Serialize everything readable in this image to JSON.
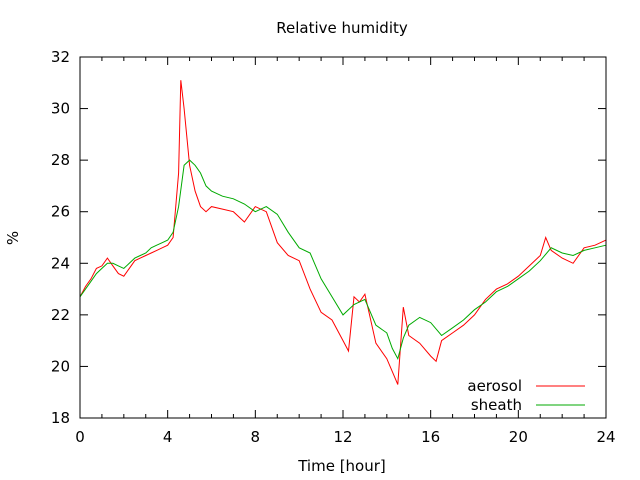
{
  "chart_data": {
    "type": "line",
    "title": "Relative humidity",
    "xlabel": "Time [hour]",
    "ylabel": "%",
    "xlim": [
      0,
      24
    ],
    "ylim": [
      18,
      32
    ],
    "xticks": [
      0,
      4,
      8,
      12,
      16,
      20,
      24
    ],
    "yticks": [
      18,
      20,
      22,
      24,
      26,
      28,
      30,
      32
    ],
    "grid": false,
    "legend_position": "bottom-right",
    "series": [
      {
        "name": "aerosol",
        "color": "#ff0000",
        "x": [
          0,
          0.25,
          0.5,
          0.75,
          1,
          1.25,
          1.5,
          1.75,
          2,
          2.25,
          2.5,
          2.75,
          3,
          3.25,
          3.5,
          3.75,
          4,
          4.25,
          4.5,
          4.6,
          4.75,
          5,
          5.25,
          5.5,
          5.75,
          6,
          6.5,
          7,
          7.5,
          8,
          8.5,
          9,
          9.5,
          10,
          10.5,
          11,
          11.5,
          12,
          12.25,
          12.5,
          12.75,
          13,
          13.5,
          14,
          14.25,
          14.5,
          14.75,
          15,
          15.5,
          16,
          16.25,
          16.5,
          17,
          17.5,
          18,
          18.5,
          19,
          19.5,
          20,
          20.5,
          21,
          21.25,
          21.5,
          22,
          22.5,
          23,
          23.5,
          24
        ],
        "y": [
          22.7,
          23.1,
          23.4,
          23.8,
          23.9,
          24.2,
          23.9,
          23.6,
          23.5,
          23.8,
          24.1,
          24.2,
          24.3,
          24.4,
          24.5,
          24.6,
          24.7,
          25.0,
          27.5,
          31.1,
          30.0,
          27.8,
          26.8,
          26.2,
          26.0,
          26.2,
          26.1,
          26.0,
          25.6,
          26.2,
          26.0,
          24.8,
          24.3,
          24.1,
          23.0,
          22.1,
          21.8,
          21.0,
          20.6,
          22.7,
          22.5,
          22.8,
          20.9,
          20.3,
          19.8,
          19.3,
          22.3,
          21.2,
          20.9,
          20.4,
          20.2,
          21.0,
          21.3,
          21.6,
          22.0,
          22.6,
          23.0,
          23.2,
          23.5,
          23.9,
          24.3,
          25.0,
          24.5,
          24.2,
          24.0,
          24.6,
          24.7,
          24.9
        ]
      },
      {
        "name": "sheath",
        "color": "#00aa00",
        "x": [
          0,
          0.25,
          0.5,
          0.75,
          1,
          1.25,
          1.5,
          1.75,
          2,
          2.25,
          2.5,
          2.75,
          3,
          3.25,
          3.5,
          3.75,
          4,
          4.25,
          4.5,
          4.75,
          5,
          5.25,
          5.5,
          5.75,
          6,
          6.5,
          7,
          7.5,
          8,
          8.5,
          9,
          9.5,
          10,
          10.5,
          11,
          11.5,
          12,
          12.5,
          13,
          13.5,
          14,
          14.25,
          14.5,
          14.75,
          15,
          15.5,
          16,
          16.5,
          17,
          17.5,
          18,
          18.5,
          19,
          19.5,
          20,
          20.5,
          21,
          21.5,
          22,
          22.5,
          23,
          23.5,
          24
        ],
        "y": [
          22.7,
          23.0,
          23.3,
          23.6,
          23.8,
          24.0,
          24.0,
          23.9,
          23.8,
          24.0,
          24.2,
          24.3,
          24.4,
          24.6,
          24.7,
          24.8,
          24.9,
          25.2,
          26.2,
          27.8,
          28.0,
          27.8,
          27.5,
          27.0,
          26.8,
          26.6,
          26.5,
          26.3,
          26.0,
          26.2,
          25.9,
          25.2,
          24.6,
          24.4,
          23.4,
          22.7,
          22.0,
          22.4,
          22.6,
          21.6,
          21.3,
          20.7,
          20.3,
          21.1,
          21.6,
          21.9,
          21.7,
          21.2,
          21.5,
          21.8,
          22.2,
          22.5,
          22.9,
          23.1,
          23.4,
          23.7,
          24.1,
          24.6,
          24.4,
          24.3,
          24.5,
          24.6,
          24.7
        ]
      }
    ]
  }
}
